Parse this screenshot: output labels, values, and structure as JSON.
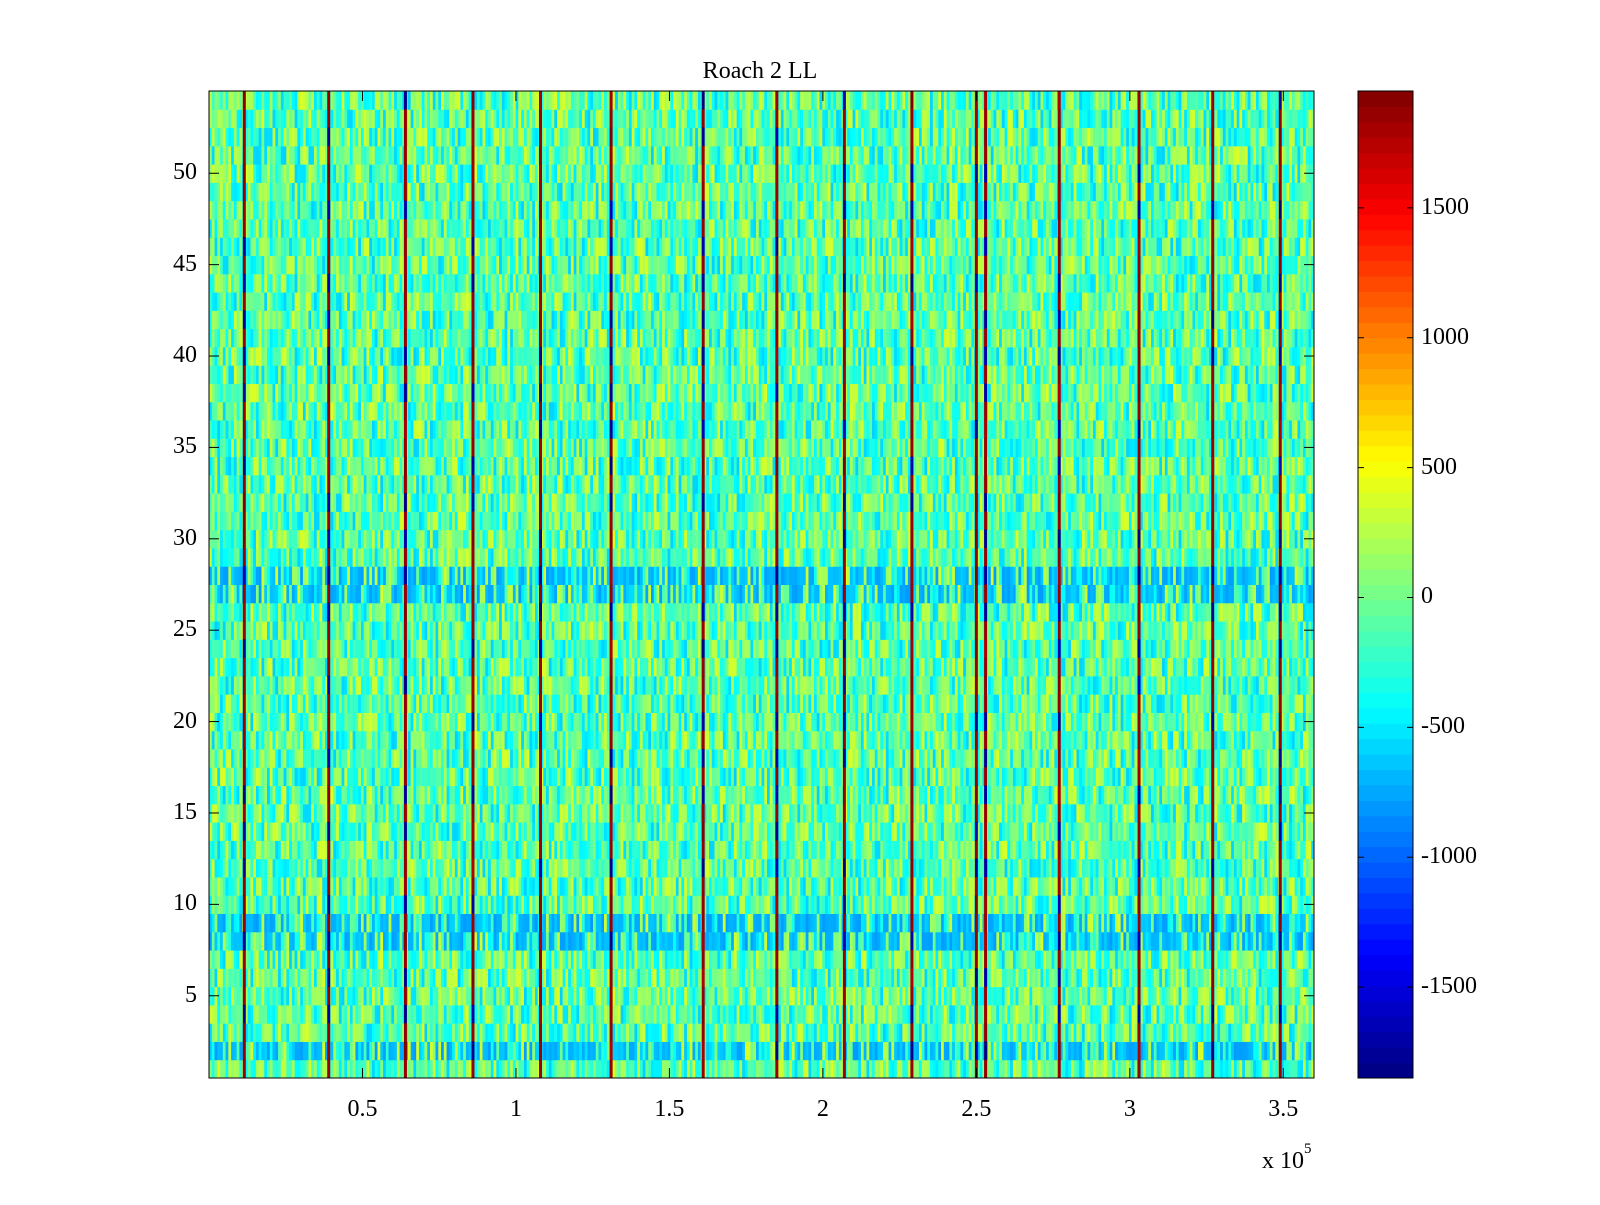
{
  "chart_data": {
    "type": "heatmap",
    "title": "Roach 2 LL",
    "xlabel": "",
    "ylabel": "",
    "x_range": [
      0,
      360000
    ],
    "y_range": [
      0.5,
      54.5
    ],
    "x_ticks": [
      50000,
      100000,
      150000,
      200000,
      250000,
      300000,
      350000
    ],
    "x_tick_labels": [
      "0.5",
      "1",
      "1.5",
      "2",
      "2.5",
      "3",
      "3.5"
    ],
    "x_multiplier_label": {
      "base": "x 10",
      "exponent": "5"
    },
    "y_ticks": [
      5,
      10,
      15,
      20,
      25,
      30,
      35,
      40,
      45,
      50
    ],
    "y_tick_labels": [
      "5",
      "10",
      "15",
      "20",
      "25",
      "30",
      "35",
      "40",
      "45",
      "50"
    ],
    "rows": 54,
    "colormap": "jet",
    "clim": [
      -1850,
      1950
    ],
    "colorbar_ticks": [
      1500,
      1000,
      500,
      0,
      -500,
      -1000,
      -1500
    ],
    "colorbar_tick_labels": [
      "1500",
      "1000",
      "500",
      "0",
      "-500",
      "-1000",
      "-1500"
    ],
    "background_value_range": [
      -600,
      400
    ],
    "dominant_value_approx": 0,
    "spike_columns_x": [
      11500,
      39000,
      64000,
      86000,
      108000,
      131000,
      161000,
      185000,
      207000,
      229000,
      250000,
      253000,
      277000,
      303000,
      327000,
      349000
    ],
    "spike_value_range": [
      -1850,
      1950
    ],
    "low_value_bands_y": [
      2,
      8,
      9,
      27,
      28
    ]
  }
}
